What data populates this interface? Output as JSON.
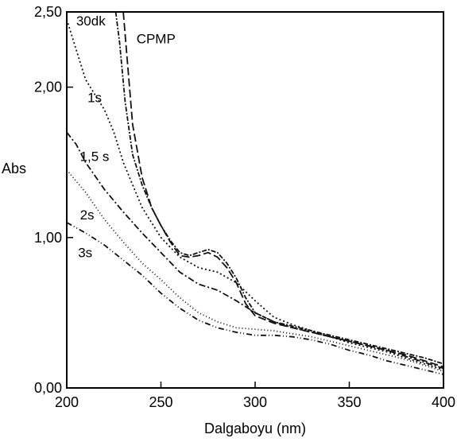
{
  "chart_data": {
    "type": "line",
    "xlabel": "Dalgaboyu (nm)",
    "ylabel": "Abs",
    "xlim": [
      200,
      400
    ],
    "ylim": [
      0,
      2.5
    ],
    "x_ticks": [
      200,
      250,
      300,
      350,
      400
    ],
    "x_tick_labels": [
      "200",
      "250",
      "300",
      "350",
      "400"
    ],
    "y_ticks": [
      0,
      1,
      2,
      2.5
    ],
    "y_tick_labels": [
      "0,00",
      "1,00",
      "2,00",
      "2,50"
    ],
    "grid": false,
    "legend": "none (curve labels printed inside plot)",
    "series": [
      {
        "name": "CPMP",
        "x": [
          230,
          232,
          235,
          240,
          245,
          250,
          255,
          260,
          265,
          270,
          275,
          280,
          285,
          290,
          295,
          300,
          310,
          320,
          330,
          340,
          350,
          360,
          370,
          380,
          390,
          400
        ],
        "y": [
          2.5,
          2.2,
          1.75,
          1.4,
          1.2,
          1.08,
          0.97,
          0.88,
          0.87,
          0.88,
          0.9,
          0.87,
          0.8,
          0.7,
          0.56,
          0.48,
          0.43,
          0.4,
          0.37,
          0.34,
          0.31,
          0.28,
          0.25,
          0.22,
          0.18,
          0.14
        ],
        "dash": "10,4"
      },
      {
        "name": "30dk",
        "x": [
          226,
          228,
          231,
          235,
          240,
          245,
          250,
          255,
          260,
          265,
          270,
          275,
          280,
          285,
          290,
          295,
          300,
          310,
          320,
          330,
          340,
          350,
          360,
          370,
          380,
          390,
          400
        ],
        "y": [
          2.5,
          2.3,
          1.9,
          1.55,
          1.35,
          1.2,
          1.08,
          0.98,
          0.9,
          0.88,
          0.9,
          0.92,
          0.9,
          0.83,
          0.73,
          0.6,
          0.5,
          0.44,
          0.41,
          0.38,
          0.35,
          0.32,
          0.29,
          0.26,
          0.23,
          0.2,
          0.16
        ],
        "dash": "6,2,2,2"
      },
      {
        "name": "1s",
        "x": [
          200,
          205,
          210,
          215,
          220,
          225,
          230,
          240,
          250,
          260,
          270,
          280,
          290,
          300,
          310,
          320,
          330,
          340,
          350,
          360,
          370,
          380,
          390,
          400
        ],
        "y": [
          2.45,
          2.25,
          2.05,
          1.95,
          1.85,
          1.7,
          1.5,
          1.2,
          1.0,
          0.87,
          0.8,
          0.77,
          0.7,
          0.58,
          0.47,
          0.42,
          0.38,
          0.34,
          0.3,
          0.27,
          0.24,
          0.2,
          0.16,
          0.12
        ],
        "dash": "2,3"
      },
      {
        "name": "1,5 s",
        "x": [
          200,
          205,
          210,
          220,
          230,
          240,
          250,
          260,
          270,
          280,
          290,
          300,
          310,
          320,
          330,
          340,
          350,
          360,
          370,
          380,
          390,
          400
        ],
        "y": [
          1.7,
          1.62,
          1.5,
          1.32,
          1.17,
          1.03,
          0.9,
          0.77,
          0.69,
          0.65,
          0.58,
          0.5,
          0.44,
          0.4,
          0.37,
          0.34,
          0.31,
          0.28,
          0.25,
          0.21,
          0.17,
          0.13
        ],
        "dash": "8,3,2,3"
      },
      {
        "name": "2s",
        "x": [
          200,
          210,
          220,
          230,
          240,
          250,
          260,
          270,
          280,
          290,
          300,
          310,
          320,
          330,
          340,
          350,
          360,
          370,
          380,
          390,
          400
        ],
        "y": [
          1.45,
          1.3,
          1.12,
          0.97,
          0.83,
          0.72,
          0.6,
          0.5,
          0.44,
          0.4,
          0.39,
          0.38,
          0.36,
          0.34,
          0.31,
          0.28,
          0.25,
          0.22,
          0.19,
          0.15,
          0.11
        ],
        "dash": "1,3"
      },
      {
        "name": "3s",
        "x": [
          200,
          210,
          220,
          230,
          240,
          250,
          260,
          270,
          280,
          290,
          300,
          310,
          320,
          330,
          340,
          350,
          360,
          370,
          380,
          390,
          400
        ],
        "y": [
          1.1,
          1.03,
          0.95,
          0.85,
          0.75,
          0.63,
          0.53,
          0.45,
          0.4,
          0.37,
          0.35,
          0.35,
          0.34,
          0.32,
          0.29,
          0.25,
          0.22,
          0.18,
          0.15,
          0.12,
          0.09
        ],
        "dash": "7,3,1,3,1,3"
      }
    ],
    "annotations": [
      {
        "text": "30dk",
        "x": 205,
        "y": 2.41
      },
      {
        "text": "CPMP",
        "x": 237,
        "y": 2.29
      },
      {
        "text": "1s",
        "x": 211,
        "y": 1.9
      },
      {
        "text": "1,5 s",
        "x": 207,
        "y": 1.51
      },
      {
        "text": "2s",
        "x": 207,
        "y": 1.12
      },
      {
        "text": "3s",
        "x": 206,
        "y": 0.87
      }
    ]
  }
}
